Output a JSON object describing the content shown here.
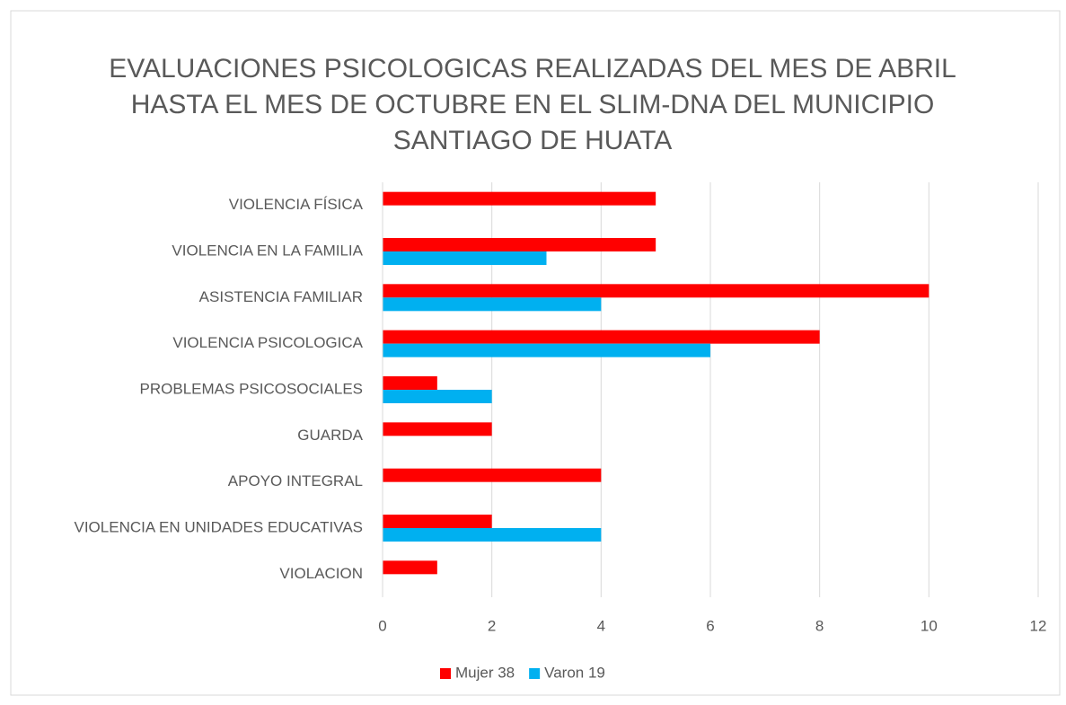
{
  "chart_data": {
    "type": "hbar",
    "title": [
      "EVALUACIONES PSICOLOGICAS REALIZADAS DEL MES DE ABRIL",
      "HASTA EL MES DE OCTUBRE EN EL SLIM-DNA DEL MUNICIPIO",
      "SANTIAGO DE HUATA"
    ],
    "categories": [
      "VIOLENCIA FÍSICA",
      "VIOLENCIA EN LA FAMILIA",
      "ASISTENCIA FAMILIAR",
      "VIOLENCIA PSICOLOGICA",
      "PROBLEMAS PSICOSOCIALES",
      "GUARDA",
      "APOYO INTEGRAL",
      "VIOLENCIA EN UNIDADES EDUCATIVAS",
      "VIOLACION"
    ],
    "series": [
      {
        "name": "Mujer 38",
        "color": "#ff0000",
        "values": [
          5,
          5,
          10,
          8,
          1,
          2,
          4,
          2,
          1
        ]
      },
      {
        "name": "Varon 19",
        "color": "#00b0f0",
        "values": [
          0,
          3,
          4,
          6,
          2,
          0,
          0,
          4,
          0
        ]
      }
    ],
    "xlim": [
      0,
      12
    ],
    "xticks": [
      0,
      2,
      4,
      6,
      8,
      10,
      12
    ],
    "grid": true,
    "legend": "bottom"
  }
}
